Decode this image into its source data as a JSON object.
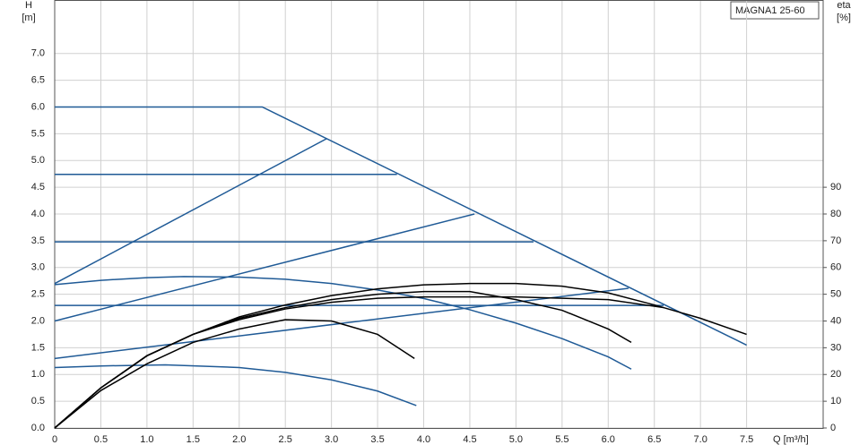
{
  "chart_data": {
    "type": "line",
    "legend": "MAGNA1 25-60",
    "y_label": "H",
    "y_unit": "[m]",
    "y2_label": "eta",
    "y2_unit": "[%]",
    "x_label": "Q [m³/h]",
    "xlim": [
      0,
      8.33
    ],
    "ylim": [
      0,
      8.0
    ],
    "y2lim": [
      0,
      160
    ],
    "grid": true,
    "xticks": [
      0,
      0.5,
      {
        "value": 1,
        "label": "1.0"
      },
      1.5,
      {
        "value": 2,
        "label": "2.0"
      },
      2.5,
      {
        "value": 3,
        "label": "3.0"
      },
      3.5,
      {
        "value": 4,
        "label": "4.0"
      },
      4.5,
      {
        "value": 5,
        "label": "5.0"
      },
      5.5,
      {
        "value": 6,
        "label": "6.0"
      },
      6.5,
      {
        "value": 7,
        "label": "7.0"
      },
      7.5
    ],
    "yticks": [
      {
        "value": 0,
        "label": "0.0"
      },
      0.5,
      {
        "value": 1,
        "label": "1.0"
      },
      1.5,
      {
        "value": 2,
        "label": "2.0"
      },
      2.5,
      {
        "value": 3,
        "label": "3.0"
      },
      3.5,
      {
        "value": 4,
        "label": "4.0"
      },
      4.5,
      {
        "value": 5,
        "label": "5.0"
      },
      5.5,
      {
        "value": 6,
        "label": "6.0"
      },
      6.5,
      {
        "value": 7,
        "label": "7.0"
      }
    ],
    "y2ticks": [
      0,
      10,
      20,
      30,
      40,
      50,
      60,
      70,
      80,
      90
    ],
    "series": [
      {
        "color": "#1f5a96",
        "x": [
          0,
          2.25,
          7.5
        ],
        "values": [
          6.0,
          6.0,
          1.55
        ]
      },
      {
        "color": "#1f5a96",
        "x": [
          0,
          3.71
        ],
        "values": [
          4.74,
          4.74
        ]
      },
      {
        "color": "#1f5a96",
        "x": [
          0,
          5.19
        ],
        "values": [
          3.48,
          3.48
        ]
      },
      {
        "color": "#1f5a96",
        "x": [
          0,
          6.6
        ],
        "values": [
          2.29,
          2.29
        ]
      },
      {
        "color": "#1f5a96",
        "x": [
          0,
          2.95
        ],
        "values": [
          2.7,
          5.41
        ]
      },
      {
        "color": "#1f5a96",
        "x": [
          0,
          4.55
        ],
        "values": [
          2.0,
          4.0
        ]
      },
      {
        "color": "#1f5a96",
        "x": [
          0,
          6.22
        ],
        "values": [
          1.3,
          2.61
        ]
      },
      {
        "color": "#1f5a96",
        "x": [
          0,
          0.5,
          1.0,
          1.4,
          2.0,
          2.5,
          3.0,
          3.5,
          4.0,
          4.5,
          5.0,
          5.5,
          6.0,
          6.25
        ],
        "values": [
          2.68,
          2.76,
          2.81,
          2.83,
          2.82,
          2.78,
          2.7,
          2.58,
          2.42,
          2.21,
          1.96,
          1.67,
          1.33,
          1.1
        ]
      },
      {
        "color": "#1f5a96",
        "x": [
          0,
          0.5,
          1.2,
          2.0,
          2.5,
          3.0,
          3.5,
          3.92
        ],
        "values": [
          1.13,
          1.16,
          1.18,
          1.13,
          1.04,
          0.9,
          0.69,
          0.42
        ]
      },
      {
        "color": "#000000",
        "axis": "y2",
        "x": [
          0,
          0.5,
          1.0,
          1.5,
          2.0,
          2.5,
          3.0,
          3.5,
          3.9
        ],
        "values": [
          0,
          14,
          24,
          32,
          37,
          40.5,
          40,
          35,
          26
        ]
      },
      {
        "color": "#000000",
        "axis": "y2",
        "x": [
          0,
          0.5,
          1.0,
          1.5,
          2.0,
          2.5,
          3.0,
          3.5,
          4.0,
          4.5,
          5.0,
          5.5,
          6.0,
          6.25
        ],
        "values": [
          0,
          15,
          27,
          35,
          41,
          45,
          48,
          50,
          51,
          51,
          48,
          44,
          37,
          32
        ]
      },
      {
        "color": "#000000",
        "axis": "y2",
        "x": [
          0,
          0.5,
          1.0,
          1.5,
          2.0,
          2.5,
          3.0,
          3.5,
          4.0,
          4.5,
          5.0,
          5.5,
          6.0,
          6.5,
          7.0,
          7.5
        ],
        "values": [
          0,
          15,
          27,
          35,
          41.5,
          46,
          49.5,
          52,
          53.5,
          54,
          54,
          53,
          50.5,
          46,
          41,
          35
        ]
      },
      {
        "color": "#000000",
        "axis": "y2",
        "x": [
          0,
          0.5,
          1.0,
          1.5,
          2.0,
          2.5,
          3.0,
          3.5,
          4.0,
          5.0,
          6.0,
          6.6
        ],
        "values": [
          0,
          15,
          27,
          35,
          40.5,
          44.5,
          47,
          48.5,
          49,
          49,
          48,
          45
        ]
      }
    ]
  }
}
